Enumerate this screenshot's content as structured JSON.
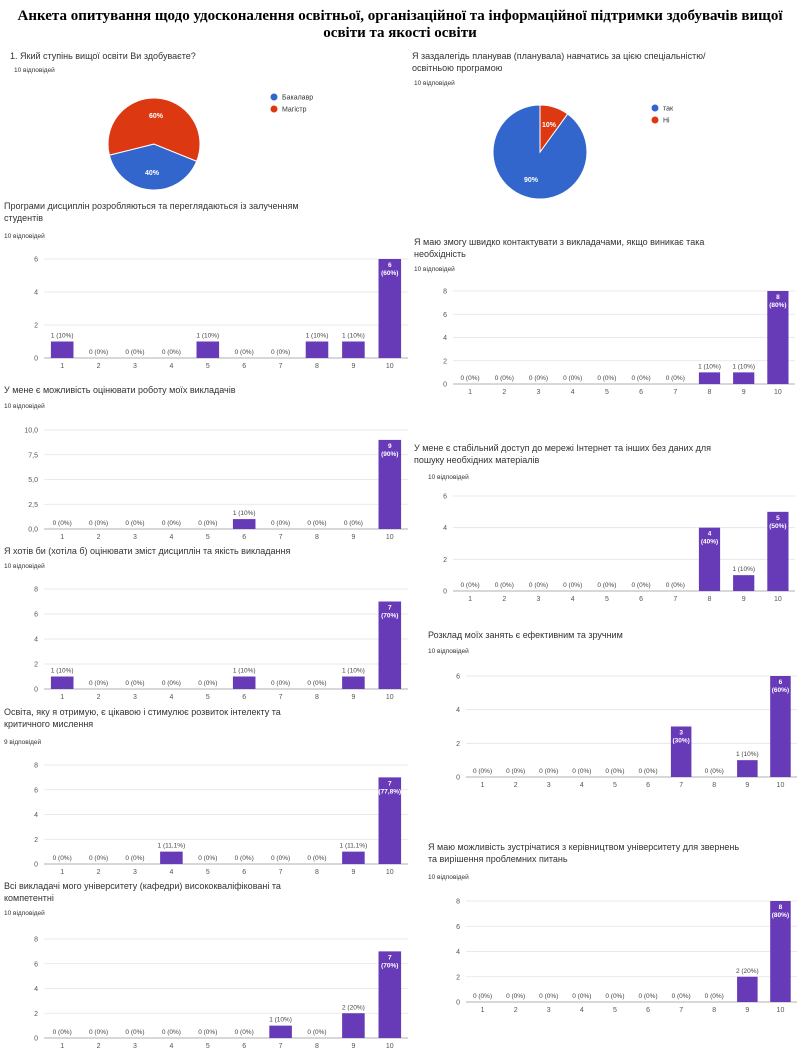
{
  "page_title": "Анкета опитування щодо удосконалення освітньої, організаційної та інформаційної підтримки здобувачів вищої освіти та якості освіти",
  "colors": {
    "bar": "#673ab7",
    "pie_blue": "#3366cc",
    "pie_red": "#dc3912"
  },
  "chart_data": [
    {
      "type": "pie",
      "question": "1. Який ступінь вищої освіти Ви здобуваєте?",
      "responses": "10 відповідей",
      "series": [
        {
          "name": "Бакалавр",
          "value": 40,
          "label": "40%",
          "color": "#3366cc"
        },
        {
          "name": "Магістр",
          "value": 60,
          "label": "60%",
          "color": "#dc3912"
        }
      ]
    },
    {
      "type": "pie",
      "question": "Я заздалегідь планував (планувала) навчатись за цією спеціальністю/ освітньою програмою",
      "responses": "10 відповідей",
      "series": [
        {
          "name": "так",
          "value": 90,
          "label": "90%",
          "color": "#3366cc"
        },
        {
          "name": "Ні",
          "value": 10,
          "label": "10%",
          "color": "#dc3912"
        }
      ]
    },
    {
      "type": "bar",
      "question": "Програми дисциплін розробляються та переглядаються із залученням студентів",
      "responses": "10 відповідей",
      "categories": [
        "1",
        "2",
        "3",
        "4",
        "5",
        "6",
        "7",
        "8",
        "9",
        "10"
      ],
      "values": [
        1,
        0,
        0,
        0,
        1,
        0,
        0,
        1,
        1,
        6
      ],
      "labels": [
        "1 (10%)",
        "0 (0%)",
        "0 (0%)",
        "0 (0%)",
        "1 (10%)",
        "0 (0%)",
        "0 (0%)",
        "1 (10%)",
        "1 (10%)",
        "6 (60%)"
      ],
      "ylim": [
        0,
        6
      ],
      "yticks": [
        "0",
        "2",
        "4",
        "6"
      ],
      "ytick_values": [
        0,
        2,
        4,
        6
      ]
    },
    {
      "type": "bar",
      "question": "Я маю змогу швидко контактувати з викладачами, якщо виникає така необхідність",
      "responses": "10 відповідей",
      "categories": [
        "1",
        "2",
        "3",
        "4",
        "5",
        "6",
        "7",
        "8",
        "9",
        "10"
      ],
      "values": [
        0,
        0,
        0,
        0,
        0,
        0,
        0,
        1,
        1,
        8
      ],
      "labels": [
        "0 (0%)",
        "0 (0%)",
        "0 (0%)",
        "0 (0%)",
        "0 (0%)",
        "0 (0%)",
        "0 (0%)",
        "1 (10%)",
        "1 (10%)",
        "8 (80%)"
      ],
      "ylim": [
        0,
        8
      ],
      "yticks": [
        "0",
        "2",
        "4",
        "6",
        "8"
      ],
      "ytick_values": [
        0,
        2,
        4,
        6,
        8
      ]
    },
    {
      "type": "bar",
      "question": "У мене є можливість оцінювати роботу моїх викладачів",
      "responses": "10 відповідей",
      "categories": [
        "1",
        "2",
        "3",
        "4",
        "5",
        "6",
        "7",
        "8",
        "9",
        "10"
      ],
      "values": [
        0,
        0,
        0,
        0,
        0,
        1,
        0,
        0,
        0,
        9
      ],
      "labels": [
        "0 (0%)",
        "0 (0%)",
        "0 (0%)",
        "0 (0%)",
        "0 (0%)",
        "1 (10%)",
        "0 (0%)",
        "0 (0%)",
        "0 (0%)",
        "9 (90%)"
      ],
      "ylim": [
        0,
        10
      ],
      "yticks": [
        "0,0",
        "2,5",
        "5,0",
        "7,5",
        "10,0"
      ],
      "ytick_values": [
        0,
        2.5,
        5,
        7.5,
        10
      ]
    },
    {
      "type": "bar",
      "question": "У мене є стабільний доступ до мережі Інтернет та інших без даних для пошуку необхідних матеріалів",
      "responses": "10 відповідей",
      "categories": [
        "1",
        "2",
        "3",
        "4",
        "5",
        "6",
        "7",
        "8",
        "9",
        "10"
      ],
      "values": [
        0,
        0,
        0,
        0,
        0,
        0,
        0,
        4,
        1,
        5
      ],
      "labels": [
        "0 (0%)",
        "0 (0%)",
        "0 (0%)",
        "0 (0%)",
        "0 (0%)",
        "0 (0%)",
        "0 (0%)",
        "4 (40%)",
        "1 (10%)",
        "5 (50%)"
      ],
      "ylim": [
        0,
        6
      ],
      "yticks": [
        "0",
        "2",
        "4",
        "6"
      ],
      "ytick_values": [
        0,
        2,
        4,
        6
      ]
    },
    {
      "type": "bar",
      "question": "Я хотів би (хотіла б) оцінювати зміст дисциплін та якість викладання",
      "responses": "10 відповідей",
      "categories": [
        "1",
        "2",
        "3",
        "4",
        "5",
        "6",
        "7",
        "8",
        "9",
        "10"
      ],
      "values": [
        1,
        0,
        0,
        0,
        0,
        1,
        0,
        0,
        1,
        7
      ],
      "labels": [
        "1 (10%)",
        "0 (0%)",
        "0 (0%)",
        "0 (0%)",
        "0 (0%)",
        "1 (10%)",
        "0 (0%)",
        "0 (0%)",
        "1 (10%)",
        "7 (70%)"
      ],
      "ylim": [
        0,
        8
      ],
      "yticks": [
        "0",
        "2",
        "4",
        "6",
        "8"
      ],
      "ytick_values": [
        0,
        2,
        4,
        6,
        8
      ]
    },
    {
      "type": "bar",
      "question": "Розклад моїх занять є ефективним та зручним",
      "responses": "10 відповідей",
      "categories": [
        "1",
        "2",
        "3",
        "4",
        "5",
        "6",
        "7",
        "8",
        "9",
        "10"
      ],
      "values": [
        0,
        0,
        0,
        0,
        0,
        0,
        3,
        0,
        1,
        6
      ],
      "labels": [
        "0 (0%)",
        "0 (0%)",
        "0 (0%)",
        "0 (0%)",
        "0 (0%)",
        "0 (0%)",
        "3 (30%)",
        "0 (0%)",
        "1 (10%)",
        "6 (60%)"
      ],
      "ylim": [
        0,
        6
      ],
      "yticks": [
        "0",
        "2",
        "4",
        "6"
      ],
      "ytick_values": [
        0,
        2,
        4,
        6
      ]
    },
    {
      "type": "bar",
      "question": "Освіта, яку я отримую, є цікавою і стимулює розвиток інтелекту та критичного мислення",
      "responses": "9 відповідей",
      "categories": [
        "1",
        "2",
        "3",
        "4",
        "5",
        "6",
        "7",
        "8",
        "9",
        "10"
      ],
      "values": [
        0,
        0,
        0,
        1,
        0,
        0,
        0,
        0,
        1,
        7
      ],
      "labels": [
        "0 (0%)",
        "0 (0%)",
        "0 (0%)",
        "1 (11,1%)",
        "0 (0%)",
        "0 (0%)",
        "0 (0%)",
        "0 (0%)",
        "1 (11,1%)",
        "7 (77,8%)"
      ],
      "ylim": [
        0,
        8
      ],
      "yticks": [
        "0",
        "2",
        "4",
        "6",
        "8"
      ],
      "ytick_values": [
        0,
        2,
        4,
        6,
        8
      ]
    },
    {
      "type": "bar",
      "question": "Я маю можливість зустрічатися з керівництвом університету для звернень та вирішення проблемних питань",
      "responses": "10 відповідей",
      "categories": [
        "1",
        "2",
        "3",
        "4",
        "5",
        "6",
        "7",
        "8",
        "9",
        "10"
      ],
      "values": [
        0,
        0,
        0,
        0,
        0,
        0,
        0,
        0,
        2,
        8
      ],
      "labels": [
        "0 (0%)",
        "0 (0%)",
        "0 (0%)",
        "0 (0%)",
        "0 (0%)",
        "0 (0%)",
        "0 (0%)",
        "0 (0%)",
        "2 (20%)",
        "8 (80%)"
      ],
      "ylim": [
        0,
        8
      ],
      "yticks": [
        "0",
        "2",
        "4",
        "6",
        "8"
      ],
      "ytick_values": [
        0,
        2,
        4,
        6,
        8
      ]
    },
    {
      "type": "bar",
      "question": "Всі викладачі мого університету (кафедри) висококваліфіковані та компетентні",
      "responses": "10 відповідей",
      "categories": [
        "1",
        "2",
        "3",
        "4",
        "5",
        "6",
        "7",
        "8",
        "9",
        "10"
      ],
      "values": [
        0,
        0,
        0,
        0,
        0,
        0,
        1,
        0,
        2,
        7
      ],
      "labels": [
        "0 (0%)",
        "0 (0%)",
        "0 (0%)",
        "0 (0%)",
        "0 (0%)",
        "0 (0%)",
        "1 (10%)",
        "0 (0%)",
        "2 (20%)",
        "7 (70%)"
      ],
      "ylim": [
        0,
        8
      ],
      "yticks": [
        "0",
        "2",
        "4",
        "6",
        "8"
      ],
      "ytick_values": [
        0,
        2,
        4,
        6,
        8
      ]
    }
  ]
}
